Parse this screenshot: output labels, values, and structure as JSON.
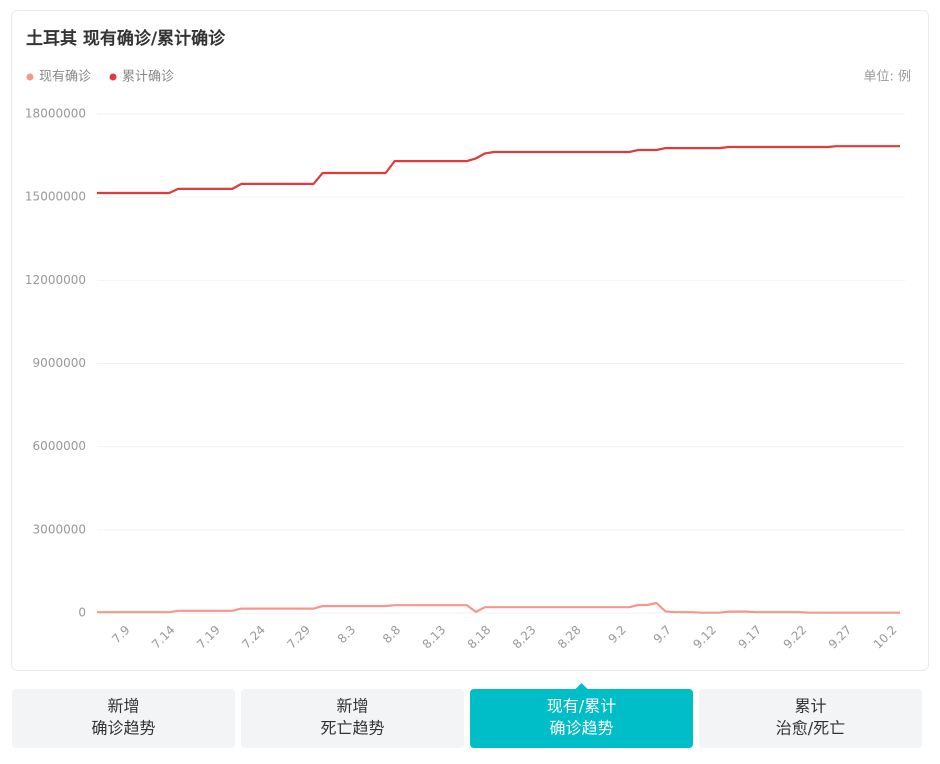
{
  "chart_data": {
    "type": "line",
    "title": "土耳其 现有确诊/累计确诊",
    "unit": "单位: 例",
    "categories": [
      null,
      null,
      null,
      "7.9",
      null,
      null,
      null,
      null,
      "7.14",
      null,
      null,
      null,
      null,
      "7.19",
      null,
      null,
      null,
      null,
      "7.24",
      null,
      null,
      null,
      null,
      "7.29",
      null,
      null,
      null,
      null,
      "8.3",
      null,
      null,
      null,
      null,
      "8.8",
      null,
      null,
      null,
      null,
      "8.13",
      null,
      null,
      null,
      null,
      "8.18",
      null,
      null,
      null,
      null,
      "8.23",
      null,
      null,
      null,
      null,
      "8.28",
      null,
      null,
      null,
      null,
      "9.2",
      null,
      null,
      null,
      null,
      "9.7",
      null,
      null,
      null,
      null,
      "9.12",
      null,
      null,
      null,
      null,
      "9.17",
      null,
      null,
      null,
      null,
      "9.22",
      null,
      null,
      null,
      null,
      "9.27",
      null,
      null,
      null,
      null,
      "10.2",
      null
    ],
    "series": [
      {
        "name": "现有确诊",
        "color": "#f5978b",
        "values": [
          30000,
          30000,
          30000,
          30000,
          30000,
          30000,
          30000,
          30000,
          30000,
          80000,
          80000,
          80000,
          80000,
          80000,
          80000,
          80000,
          160000,
          160000,
          160000,
          160000,
          160000,
          160000,
          160000,
          160000,
          160000,
          250000,
          250000,
          250000,
          250000,
          250000,
          250000,
          250000,
          250000,
          280000,
          280000,
          280000,
          280000,
          280000,
          280000,
          280000,
          280000,
          280000,
          40000,
          210000,
          210000,
          210000,
          210000,
          210000,
          210000,
          210000,
          210000,
          210000,
          210000,
          210000,
          210000,
          210000,
          210000,
          210000,
          210000,
          210000,
          290000,
          290000,
          360000,
          60000,
          30000,
          30000,
          30000,
          10000,
          10000,
          10000,
          50000,
          50000,
          50000,
          30000,
          30000,
          30000,
          30000,
          30000,
          30000,
          10000,
          10000,
          10000,
          10000,
          10000,
          10000,
          10000,
          10000,
          10000,
          10000,
          10000
        ]
      },
      {
        "name": "累计确诊",
        "color": "#e03a3c",
        "values": [
          15150000,
          15150000,
          15150000,
          15150000,
          15150000,
          15150000,
          15150000,
          15150000,
          15150000,
          15300000,
          15300000,
          15300000,
          15300000,
          15300000,
          15300000,
          15300000,
          15480000,
          15480000,
          15480000,
          15480000,
          15480000,
          15480000,
          15480000,
          15480000,
          15480000,
          15870000,
          15870000,
          15870000,
          15870000,
          15870000,
          15870000,
          15870000,
          15870000,
          16300000,
          16300000,
          16300000,
          16300000,
          16300000,
          16300000,
          16300000,
          16300000,
          16300000,
          16400000,
          16580000,
          16630000,
          16630000,
          16630000,
          16630000,
          16630000,
          16630000,
          16630000,
          16630000,
          16630000,
          16630000,
          16630000,
          16630000,
          16630000,
          16630000,
          16630000,
          16630000,
          16700000,
          16700000,
          16700000,
          16770000,
          16770000,
          16770000,
          16770000,
          16770000,
          16770000,
          16770000,
          16810000,
          16810000,
          16810000,
          16810000,
          16810000,
          16810000,
          16810000,
          16810000,
          16810000,
          16810000,
          16810000,
          16810000,
          16840000,
          16840000,
          16840000,
          16840000,
          16840000,
          16840000,
          16840000,
          16840000
        ]
      }
    ],
    "ylim": [
      0,
      18000000
    ],
    "yticks": [
      0,
      3000000,
      6000000,
      9000000,
      12000000,
      15000000,
      18000000
    ],
    "grid": true
  },
  "tabs": [
    {
      "lines": [
        "新增",
        "确诊趋势"
      ]
    },
    {
      "lines": [
        "新增",
        "死亡趋势"
      ]
    },
    {
      "lines": [
        "现有/累计",
        "确诊趋势"
      ]
    },
    {
      "lines": [
        "累计",
        "治愈/死亡"
      ]
    }
  ],
  "active_tab": 2
}
